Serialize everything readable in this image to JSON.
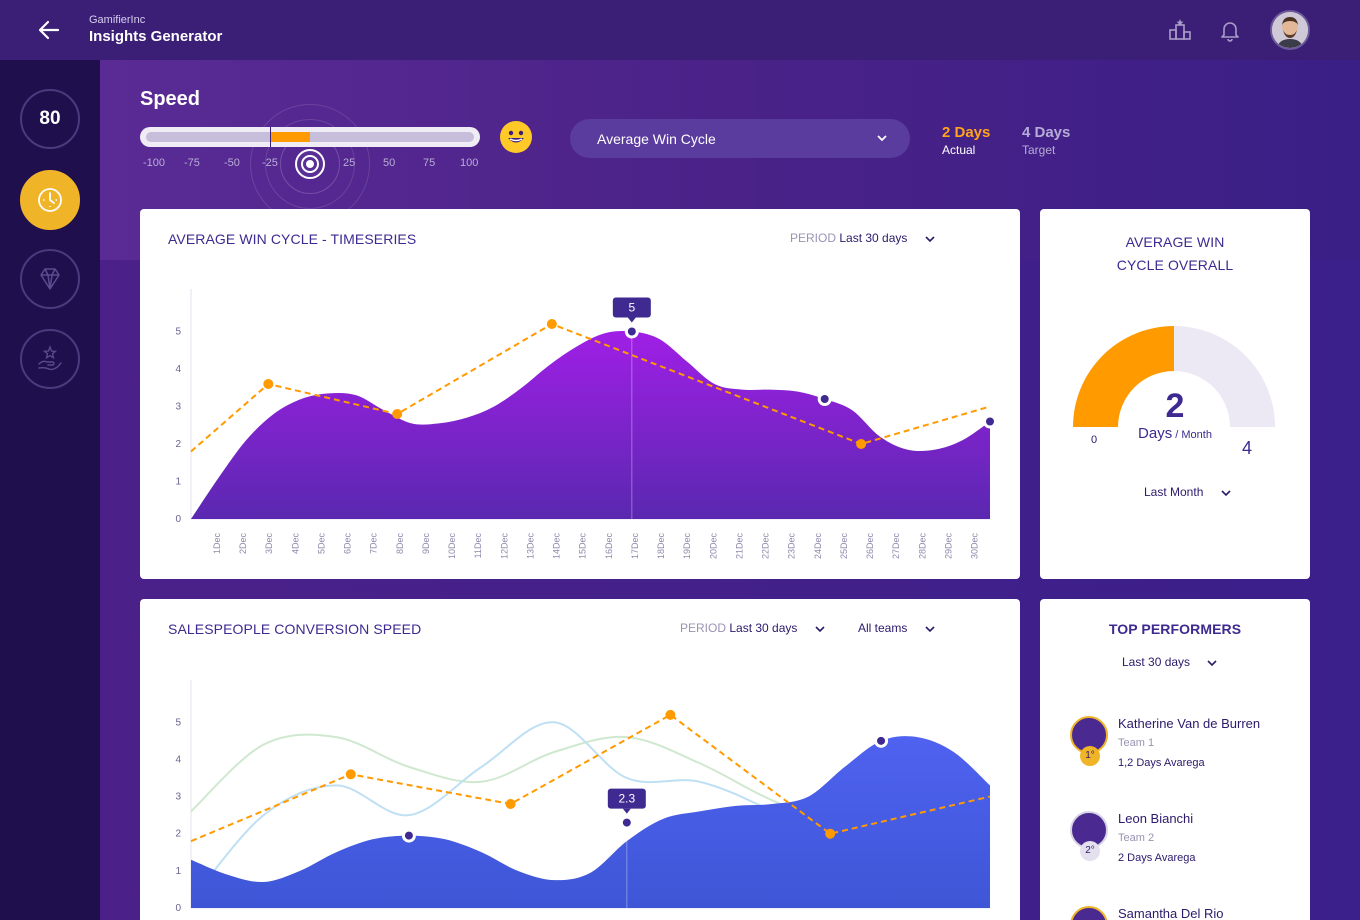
{
  "header": {
    "company": "GamifierInc",
    "title": "Insights Generator"
  },
  "sidebar": {
    "score": "80"
  },
  "speed": {
    "label": "Speed",
    "ticks": [
      "-100",
      "-75",
      "-50",
      "-25",
      "25",
      "50",
      "75",
      "100"
    ],
    "metric_dropdown": "Average Win Cycle",
    "actual_value": "2 Days",
    "actual_label": "Actual",
    "target_value": "4 Days",
    "target_label": "Target"
  },
  "timeseries": {
    "title": "AVERAGE WIN CYCLE - TIMESERIES",
    "period_label": "PERIOD",
    "period_value": "Last 30 days"
  },
  "overall": {
    "title_line1": "AVERAGE WIN",
    "title_line2": "CYCLE OVERALL",
    "value": "2",
    "unit_main": "Days",
    "unit_sep": " / Month",
    "min": "0",
    "max": "4",
    "period": "Last Month"
  },
  "conversion": {
    "title": "SALESPEOPLE CONVERSION SPEED",
    "period_label": "PERIOD",
    "period_value": "Last 30 days",
    "team_filter": "All teams"
  },
  "top_performers": {
    "title": "TOP PERFORMERS",
    "period": "Last 30 days",
    "items": [
      {
        "name": "Katherine Van de Burren",
        "team": "Team 1",
        "stat": "1,2 Days Avarega",
        "rank": "1°"
      },
      {
        "name": "Leon Bianchi",
        "team": "Team 2",
        "stat": "2 Days Avarega",
        "rank": "2°"
      },
      {
        "name": "Samantha Del Rio",
        "team": "",
        "stat": "",
        "rank": ""
      }
    ]
  },
  "colors": {
    "accent": "#ff9a00",
    "purple": "#8c22d6",
    "blue": "#4f60e8"
  },
  "chart_data": [
    {
      "type": "area",
      "title": "AVERAGE WIN CYCLE - TIMESERIES",
      "categories": [
        "1Dec",
        "2Dec",
        "3Dec",
        "4Dec",
        "5Dec",
        "6Dec",
        "7Dec",
        "8Dec",
        "9Dec",
        "10Dec",
        "11Dec",
        "12Dec",
        "13Dec",
        "14Dec",
        "15Dec",
        "16Dec",
        "17Dec",
        "18Dec",
        "19Dec",
        "20Dec",
        "21Dec",
        "22Dec",
        "23Dec",
        "24Dec",
        "25Dec",
        "26Dec",
        "27Dec",
        "28Dec",
        "29Dec",
        "30Dec"
      ],
      "y_ticks": [
        "0",
        "1",
        "2",
        "3",
        "4",
        "5"
      ],
      "ylim": [
        0,
        5.6
      ],
      "series": [
        {
          "kind": "area",
          "values": [
            0,
            1.1,
            2.1,
            2.8,
            3.2,
            3.35,
            3.3,
            2.9,
            2.55,
            2.55,
            2.7,
            3.0,
            3.5,
            4.1,
            4.6,
            4.95,
            5.0,
            4.8,
            4.2,
            3.6,
            3.45,
            3.45,
            3.4,
            3.2,
            2.9,
            2.2,
            1.85,
            1.85,
            2.1,
            2.6
          ]
        },
        {
          "kind": "dashed",
          "x": [
            0,
            3,
            8,
            14,
            26,
            31
          ],
          "values": [
            1.8,
            3.6,
            2.8,
            5.2,
            2.0,
            3.0
          ]
        }
      ],
      "highlight": {
        "x": 17,
        "value": 5,
        "label": "5"
      }
    },
    {
      "type": "area",
      "title": "SALESPEOPLE CONVERSION SPEED",
      "y_ticks": [
        "0",
        "1",
        "2",
        "3",
        "4",
        "5"
      ],
      "ylim": [
        0,
        5.6
      ],
      "series": [
        {
          "kind": "area",
          "values": [
            1.3,
            0.9,
            0.7,
            1.0,
            1.5,
            1.85,
            1.95,
            1.85,
            1.5,
            1.0,
            0.75,
            0.95,
            1.8,
            2.4,
            2.6,
            2.75,
            2.8,
            3.0,
            3.8,
            4.5,
            4.6,
            4.2,
            3.3
          ]
        },
        {
          "kind": "dashed",
          "values": [
            1.8,
            3.6,
            2.8,
            5.2,
            2.0,
            3.0
          ]
        },
        {
          "kind": "light-green",
          "values": [
            2.6,
            4.4,
            4.6,
            3.8,
            3.4,
            4.2,
            4.6,
            3.9,
            2.9,
            2.2,
            1.9,
            2.3
          ]
        },
        {
          "kind": "light-blue",
          "values": [
            0.2,
            2.5,
            3.3,
            2.5,
            3.8,
            5.0,
            3.5,
            3.4,
            2.6,
            1.5,
            0.7,
            1.6
          ]
        }
      ],
      "highlight": {
        "value": 2.3,
        "label": "2.3"
      }
    },
    {
      "type": "pie",
      "title": "AVERAGE WIN CYCLE OVERALL",
      "values": [
        2,
        2
      ],
      "range": [
        0,
        4
      ]
    }
  ]
}
